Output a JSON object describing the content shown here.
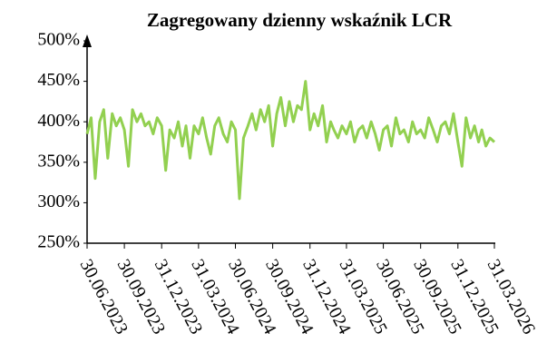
{
  "chart_data": {
    "type": "line",
    "title": "Zagregowany dzienny wskaźnik LCR",
    "x": [
      "30.06.2023",
      "10.07.2023",
      "20.07.2023",
      "31.07.2023",
      "10.08.2023",
      "20.08.2023",
      "31.08.2023",
      "10.09.2023",
      "20.09.2023",
      "30.09.2023",
      "10.10.2023",
      "20.10.2023",
      "31.10.2023",
      "10.11.2023",
      "20.11.2023",
      "30.11.2023",
      "10.12.2023",
      "20.12.2023",
      "31.12.2023",
      "10.01.2024",
      "20.01.2024",
      "31.01.2024",
      "10.02.2024",
      "20.02.2024",
      "29.02.2024",
      "10.03.2024",
      "20.03.2024",
      "31.03.2024",
      "10.04.2024",
      "20.04.2024",
      "30.04.2024",
      "10.05.2024",
      "20.05.2024",
      "31.05.2024",
      "10.06.2024",
      "20.06.2024",
      "30.06.2024",
      "10.07.2024",
      "20.07.2024",
      "31.07.2024",
      "10.08.2024",
      "20.08.2024",
      "31.08.2024",
      "10.09.2024",
      "20.09.2024",
      "30.09.2024",
      "10.10.2024",
      "20.10.2024",
      "31.10.2024",
      "10.11.2024",
      "20.11.2024",
      "30.11.2024",
      "10.12.2024",
      "20.12.2024",
      "31.12.2024",
      "10.01.2025",
      "20.01.2025",
      "31.01.2025",
      "10.02.2025",
      "20.02.2025",
      "28.02.2025",
      "10.03.2025",
      "20.03.2025",
      "31.03.2025",
      "10.04.2025",
      "20.04.2025",
      "30.04.2025",
      "10.05.2025",
      "20.05.2025",
      "31.05.2025",
      "10.06.2025",
      "20.06.2025",
      "30.06.2025",
      "10.07.2025",
      "20.07.2025",
      "31.07.2025",
      "10.08.2025",
      "20.08.2025",
      "31.08.2025",
      "10.09.2025",
      "20.09.2025",
      "30.09.2025",
      "10.10.2025",
      "20.10.2025",
      "31.10.2025",
      "10.11.2025",
      "20.11.2025",
      "30.11.2025",
      "10.12.2025",
      "20.12.2025",
      "31.12.2025",
      "10.01.2026",
      "20.01.2026",
      "31.01.2026",
      "10.02.2026",
      "20.02.2026",
      "28.02.2026",
      "10.03.2026",
      "20.03.2026",
      "31.03.2026"
    ],
    "series": [
      {
        "name": "LCR",
        "color": "#92d050",
        "values": [
          385,
          405,
          330,
          400,
          415,
          355,
          410,
          395,
          405,
          390,
          345,
          415,
          400,
          410,
          395,
          400,
          385,
          405,
          395,
          340,
          390,
          380,
          400,
          370,
          395,
          355,
          395,
          385,
          405,
          380,
          360,
          395,
          405,
          385,
          375,
          400,
          390,
          305,
          380,
          395,
          410,
          390,
          415,
          400,
          420,
          370,
          410,
          430,
          395,
          425,
          400,
          420,
          415,
          450,
          390,
          410,
          395,
          420,
          375,
          400,
          390,
          380,
          395,
          385,
          400,
          375,
          390,
          395,
          380,
          400,
          385,
          365,
          390,
          395,
          370,
          405,
          385,
          390,
          375,
          400,
          385,
          390,
          380,
          405,
          390,
          375,
          395,
          400,
          385,
          410,
          375,
          345,
          405,
          380,
          395,
          375,
          390,
          370,
          380,
          375
        ]
      }
    ],
    "xlim": [
      "30.06.2023",
      "31.03.2026"
    ],
    "xticks": [
      "30.06.2023",
      "30.09.2023",
      "31.12.2023",
      "31.03.2024",
      "30.06.2024",
      "30.09.2024",
      "31.12.2024",
      "31.03.2025",
      "30.06.2025",
      "30.09.2025",
      "31.12.2025",
      "31.03.2026"
    ],
    "ylim": [
      250,
      500
    ],
    "yticks": [
      {
        "value": 250,
        "label": "250%"
      },
      {
        "value": 300,
        "label": "300%"
      },
      {
        "value": 350,
        "label": "350%"
      },
      {
        "value": 400,
        "label": "400%"
      },
      {
        "value": 450,
        "label": "450%"
      },
      {
        "value": 500,
        "label": "500%"
      }
    ]
  }
}
